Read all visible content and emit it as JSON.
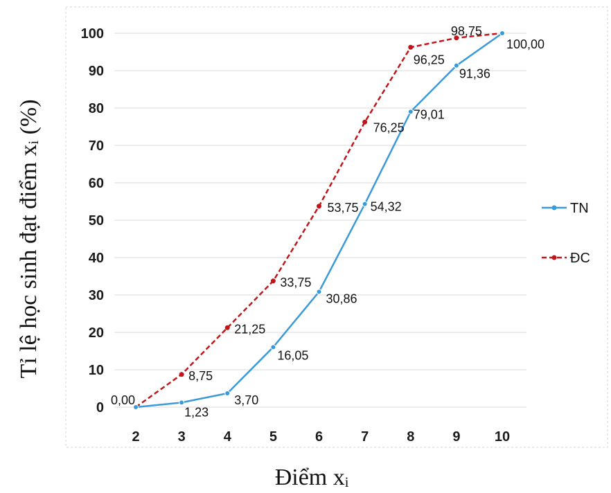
{
  "chart_data": {
    "type": "line",
    "xlabel": "Điểm xᵢ",
    "ylabel": "Tỉ lệ học sinh đạt điểm xᵢ (%)",
    "categories": [
      "2",
      "3",
      "4",
      "5",
      "6",
      "7",
      "8",
      "9",
      "10"
    ],
    "ylim": [
      0,
      100
    ],
    "yticks": [
      "0",
      "10",
      "20",
      "30",
      "40",
      "50",
      "60",
      "70",
      "80",
      "90",
      "100"
    ],
    "grid": "horizontal",
    "legend_position": "right",
    "series": [
      {
        "name": "TN",
        "color": "#3a9ad9",
        "dash": "solid",
        "values": [
          0,
          1.23,
          3.7,
          16.05,
          30.86,
          54.32,
          79.01,
          91.36,
          100
        ],
        "labels": [
          "",
          "1,23",
          "3,70",
          "16,05",
          "30,86",
          "54,32",
          "79,01",
          "91,36",
          "100,00"
        ]
      },
      {
        "name": "ĐC",
        "color": "#c0161b",
        "dash": "dashed",
        "values": [
          0,
          8.75,
          21.25,
          33.75,
          53.75,
          76.25,
          96.25,
          98.75,
          100
        ],
        "labels": [
          "0,00",
          "8,75",
          "21,25",
          "33,75",
          "53,75",
          "76,25",
          "96,25",
          "98,75",
          ""
        ]
      }
    ]
  }
}
